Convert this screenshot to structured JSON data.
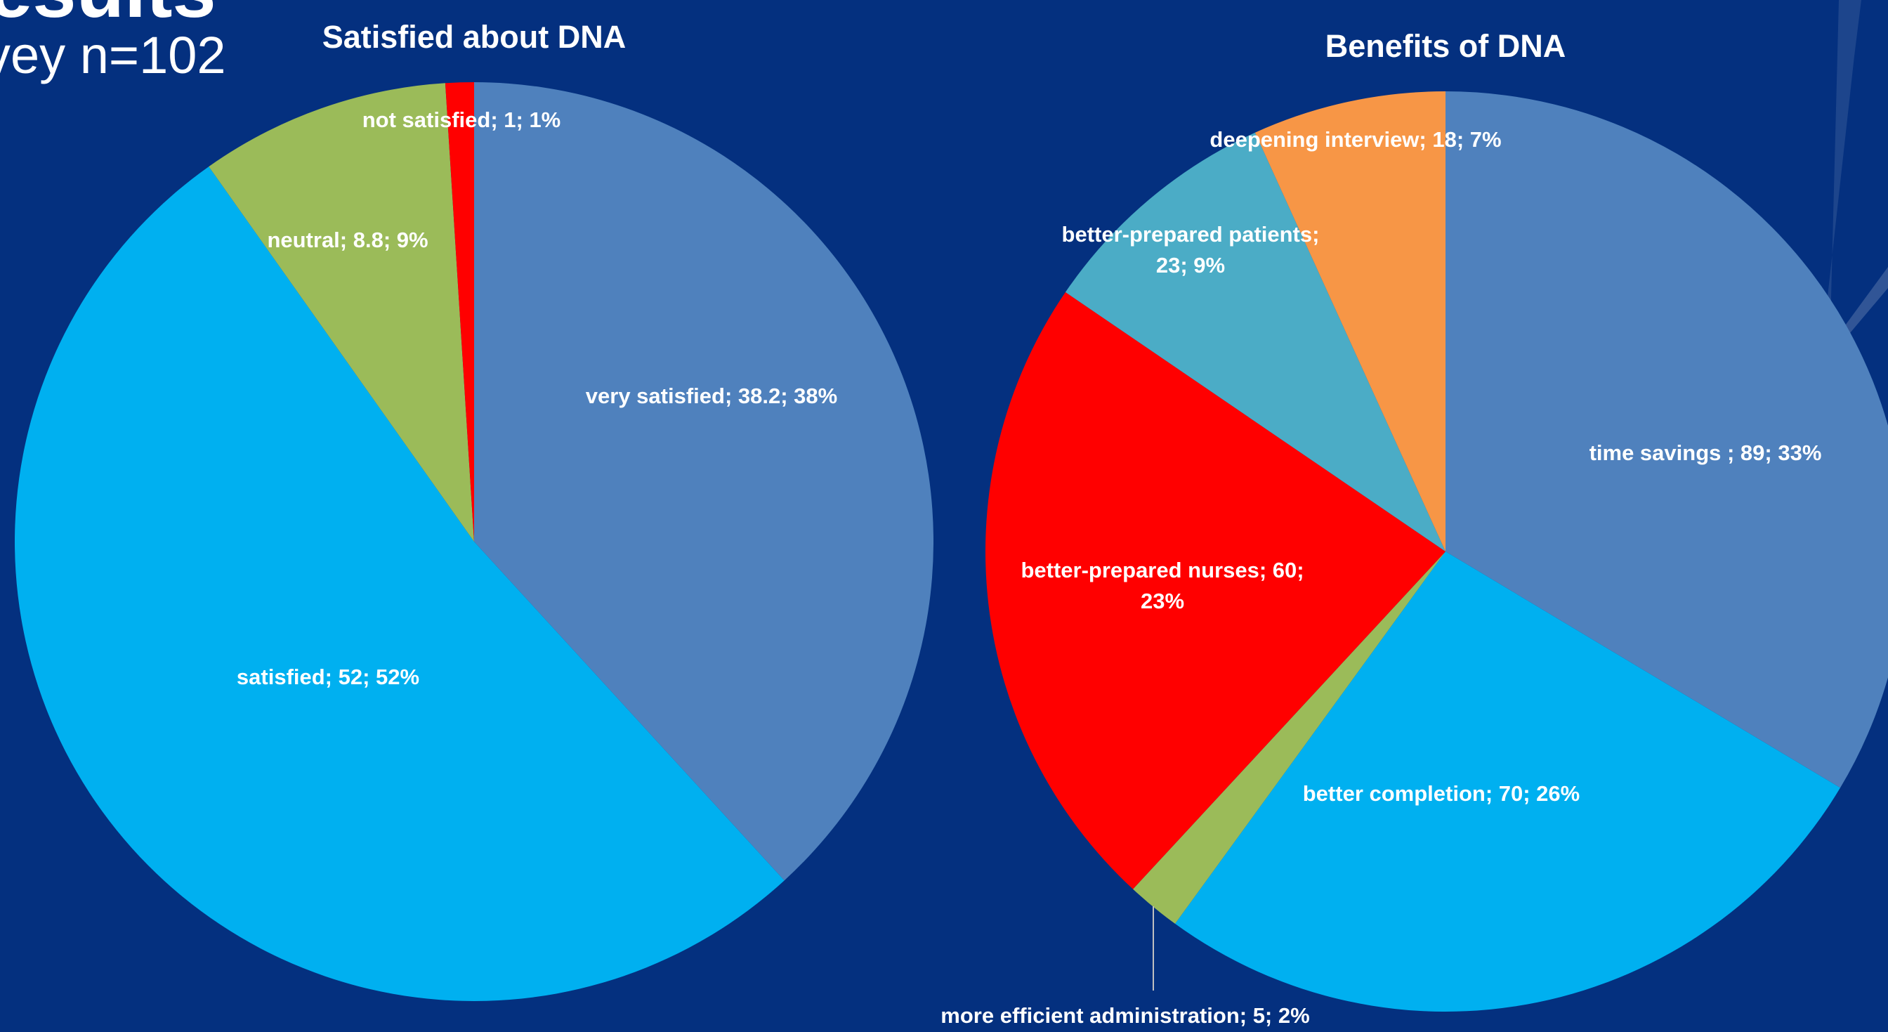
{
  "slide": {
    "title": "esults",
    "subtitle": "vey n=102"
  },
  "chart_data": [
    {
      "type": "pie",
      "title": "Satisfied about DNA",
      "slices": [
        {
          "name": "very satisfied",
          "value": 38.2,
          "percent": "38%",
          "label": "very satisfied; 38.2; 38%",
          "color": "#4f81bd"
        },
        {
          "name": "satisfied",
          "value": 52,
          "percent": "52%",
          "label": "satisfied; 52; 52%",
          "color": "#00b0f0"
        },
        {
          "name": "neutral",
          "value": 8.8,
          "percent": "9%",
          "label": "neutral; 8.8; 9%",
          "color": "#9bbb59"
        },
        {
          "name": "not satisfied",
          "value": 1,
          "percent": "1%",
          "label": "not satisfied; 1; 1%",
          "color": "#ff0000"
        }
      ]
    },
    {
      "type": "pie",
      "title": "Benefits of DNA",
      "slices": [
        {
          "name": "time savings",
          "value": 89,
          "percent": "33%",
          "label": "time savings ; 89; 33%",
          "color": "#4f81bd"
        },
        {
          "name": "better completion",
          "value": 70,
          "percent": "26%",
          "label": "better completion; 70; 26%",
          "color": "#00b0f0"
        },
        {
          "name": "more efficient administration",
          "value": 5,
          "percent": "2%",
          "label": "more efficient administration; 5; 2%",
          "color": "#9bbb59"
        },
        {
          "name": "better-prepared nurses",
          "value": 60,
          "percent": "23%",
          "label_lines": [
            "better-prepared nurses; 60;",
            "23%"
          ],
          "color": "#ff0000"
        },
        {
          "name": "better-prepared patients",
          "value": 23,
          "percent": "9%",
          "label_lines": [
            "better-prepared patients;",
            "23; 9%"
          ],
          "color": "#4bacc6"
        },
        {
          "name": "deepening interview",
          "value": 18,
          "percent": "7%",
          "label": "deepening interview; 18; 7%",
          "color": "#f79646"
        }
      ]
    }
  ]
}
